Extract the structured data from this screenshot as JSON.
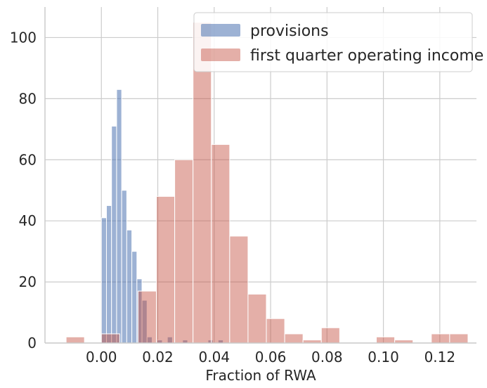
{
  "chart_data": {
    "type": "histogram",
    "xlabel": "Fraction of RWA",
    "ylabel": "",
    "xlim": [
      -0.02,
      0.133
    ],
    "ylim": [
      0,
      110
    ],
    "xticks": [
      0.0,
      0.02,
      0.04,
      0.06,
      0.08,
      0.1,
      0.12
    ],
    "xtick_labels": [
      "0.00",
      "0.02",
      "0.04",
      "0.06",
      "0.08",
      "0.10",
      "0.12"
    ],
    "yticks": [
      0,
      20,
      40,
      60,
      80,
      100
    ],
    "ytick_labels": [
      "0",
      "20",
      "40",
      "60",
      "80",
      "100"
    ],
    "grid": true,
    "legend_position": "top-right",
    "series": [
      {
        "name": "provisions",
        "color": "#4c72b0",
        "bin_width": 0.0018,
        "bins": [
          [
            0.0,
            41
          ],
          [
            0.0018,
            45
          ],
          [
            0.0036,
            71
          ],
          [
            0.0054,
            83
          ],
          [
            0.0072,
            50
          ],
          [
            0.009,
            37
          ],
          [
            0.0108,
            30
          ],
          [
            0.0126,
            21
          ],
          [
            0.0144,
            14
          ],
          [
            0.0162,
            2
          ],
          [
            0.0198,
            1
          ],
          [
            0.0234,
            2
          ],
          [
            0.0288,
            1
          ],
          [
            0.0378,
            1
          ],
          [
            0.0414,
            1
          ]
        ]
      },
      {
        "name": "first quarter operating income",
        "color": "#c44e3d",
        "bin_width": 0.0065,
        "bins": [
          [
            -0.0125,
            2
          ],
          [
            0.0,
            3
          ],
          [
            0.013,
            17
          ],
          [
            0.0195,
            48
          ],
          [
            0.026,
            60
          ],
          [
            0.0325,
            105
          ],
          [
            0.039,
            65
          ],
          [
            0.0455,
            35
          ],
          [
            0.052,
            16
          ],
          [
            0.0585,
            8
          ],
          [
            0.065,
            3
          ],
          [
            0.0715,
            1
          ],
          [
            0.078,
            5
          ],
          [
            0.0975,
            2
          ],
          [
            0.104,
            1
          ],
          [
            0.117,
            3
          ],
          [
            0.1235,
            3
          ]
        ]
      }
    ]
  }
}
